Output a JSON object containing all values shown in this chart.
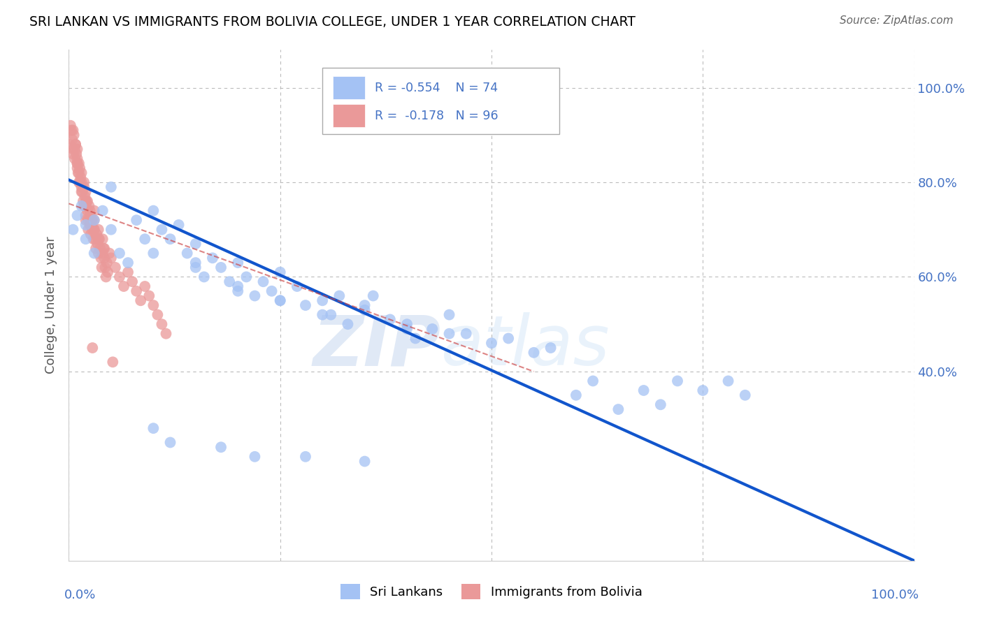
{
  "title": "SRI LANKAN VS IMMIGRANTS FROM BOLIVIA COLLEGE, UNDER 1 YEAR CORRELATION CHART",
  "source": "Source: ZipAtlas.com",
  "ylabel": "College, Under 1 year",
  "legend_r1": "R = -0.554",
  "legend_n1": "N = 74",
  "legend_r2": "R =  -0.178",
  "legend_n2": "N = 96",
  "watermark_zip": "ZIP",
  "watermark_atlas": "atlas",
  "sri_lankans_color": "#a4c2f4",
  "bolivia_color": "#ea9999",
  "sri_lankans_line_color": "#1155cc",
  "bolivia_line_color": "#cc4444",
  "background_color": "#ffffff",
  "grid_color": "#bbbbbb",
  "axis_label_color": "#4472c4",
  "title_color": "#000000",
  "ylabel_color": "#555555",
  "sri_lankans_x": [
    0.005,
    0.01,
    0.015,
    0.02,
    0.02,
    0.03,
    0.03,
    0.04,
    0.05,
    0.05,
    0.06,
    0.07,
    0.08,
    0.09,
    0.1,
    0.1,
    0.11,
    0.12,
    0.13,
    0.14,
    0.15,
    0.15,
    0.16,
    0.17,
    0.18,
    0.19,
    0.2,
    0.2,
    0.21,
    0.22,
    0.23,
    0.24,
    0.25,
    0.25,
    0.27,
    0.28,
    0.3,
    0.31,
    0.32,
    0.33,
    0.35,
    0.36,
    0.38,
    0.4,
    0.41,
    0.43,
    0.45,
    0.47,
    0.5,
    0.52,
    0.55,
    0.57,
    0.6,
    0.62,
    0.65,
    0.68,
    0.7,
    0.72,
    0.75,
    0.78,
    0.8,
    0.15,
    0.2,
    0.25,
    0.3,
    0.35,
    0.4,
    0.45,
    0.1,
    0.12,
    0.18,
    0.22,
    0.28,
    0.35
  ],
  "sri_lankans_y": [
    0.7,
    0.73,
    0.75,
    0.71,
    0.68,
    0.72,
    0.65,
    0.74,
    0.79,
    0.7,
    0.65,
    0.63,
    0.72,
    0.68,
    0.74,
    0.65,
    0.7,
    0.68,
    0.71,
    0.65,
    0.67,
    0.63,
    0.6,
    0.64,
    0.62,
    0.59,
    0.63,
    0.58,
    0.6,
    0.56,
    0.59,
    0.57,
    0.61,
    0.55,
    0.58,
    0.54,
    0.55,
    0.52,
    0.56,
    0.5,
    0.53,
    0.56,
    0.51,
    0.5,
    0.47,
    0.49,
    0.52,
    0.48,
    0.46,
    0.47,
    0.44,
    0.45,
    0.35,
    0.38,
    0.32,
    0.36,
    0.33,
    0.38,
    0.36,
    0.38,
    0.35,
    0.62,
    0.57,
    0.55,
    0.52,
    0.54,
    0.49,
    0.48,
    0.28,
    0.25,
    0.24,
    0.22,
    0.22,
    0.21
  ],
  "bolivia_x": [
    0.001,
    0.002,
    0.003,
    0.004,
    0.005,
    0.006,
    0.007,
    0.008,
    0.009,
    0.01,
    0.01,
    0.01,
    0.01,
    0.011,
    0.012,
    0.012,
    0.013,
    0.014,
    0.015,
    0.015,
    0.015,
    0.016,
    0.017,
    0.018,
    0.019,
    0.02,
    0.02,
    0.02,
    0.021,
    0.022,
    0.023,
    0.024,
    0.025,
    0.025,
    0.026,
    0.027,
    0.028,
    0.029,
    0.03,
    0.03,
    0.03,
    0.031,
    0.032,
    0.033,
    0.034,
    0.035,
    0.035,
    0.036,
    0.037,
    0.038,
    0.039,
    0.04,
    0.04,
    0.041,
    0.042,
    0.043,
    0.044,
    0.045,
    0.046,
    0.05,
    0.055,
    0.06,
    0.065,
    0.07,
    0.075,
    0.08,
    0.085,
    0.09,
    0.095,
    0.1,
    0.105,
    0.11,
    0.115,
    0.02,
    0.025,
    0.03,
    0.005,
    0.008,
    0.012,
    0.018,
    0.022,
    0.028,
    0.035,
    0.042,
    0.048,
    0.052,
    0.005,
    0.01,
    0.015,
    0.02,
    0.025,
    0.007,
    0.013,
    0.018,
    0.023,
    0.028
  ],
  "bolivia_y": [
    0.88,
    0.92,
    0.91,
    0.89,
    0.87,
    0.9,
    0.85,
    0.88,
    0.86,
    0.85,
    0.83,
    0.84,
    0.87,
    0.82,
    0.8,
    0.84,
    0.83,
    0.81,
    0.79,
    0.82,
    0.8,
    0.78,
    0.76,
    0.79,
    0.77,
    0.75,
    0.78,
    0.73,
    0.76,
    0.74,
    0.72,
    0.75,
    0.73,
    0.71,
    0.69,
    0.72,
    0.7,
    0.68,
    0.74,
    0.72,
    0.7,
    0.68,
    0.66,
    0.69,
    0.67,
    0.65,
    0.7,
    0.68,
    0.66,
    0.64,
    0.62,
    0.65,
    0.68,
    0.66,
    0.64,
    0.62,
    0.6,
    0.63,
    0.61,
    0.64,
    0.62,
    0.6,
    0.58,
    0.61,
    0.59,
    0.57,
    0.55,
    0.58,
    0.56,
    0.54,
    0.52,
    0.5,
    0.48,
    0.72,
    0.71,
    0.7,
    0.91,
    0.88,
    0.82,
    0.8,
    0.76,
    0.72,
    0.68,
    0.66,
    0.65,
    0.42,
    0.86,
    0.84,
    0.78,
    0.76,
    0.74,
    0.87,
    0.8,
    0.75,
    0.7,
    0.45
  ],
  "sl_line_x0": 0.0,
  "sl_line_y0": 0.805,
  "sl_line_x1": 1.0,
  "sl_line_y1": 0.0,
  "bo_line_x0": 0.0,
  "bo_line_y0": 0.755,
  "bo_line_x1": 0.55,
  "bo_line_y1": 0.4,
  "xmin": 0.0,
  "xmax": 1.0,
  "ymin": 0.0,
  "ymax": 1.08,
  "yticks": [
    0.4,
    0.6,
    0.8,
    1.0
  ],
  "ytick_labels": [
    "40.0%",
    "60.0%",
    "80.0%",
    "100.0%"
  ]
}
